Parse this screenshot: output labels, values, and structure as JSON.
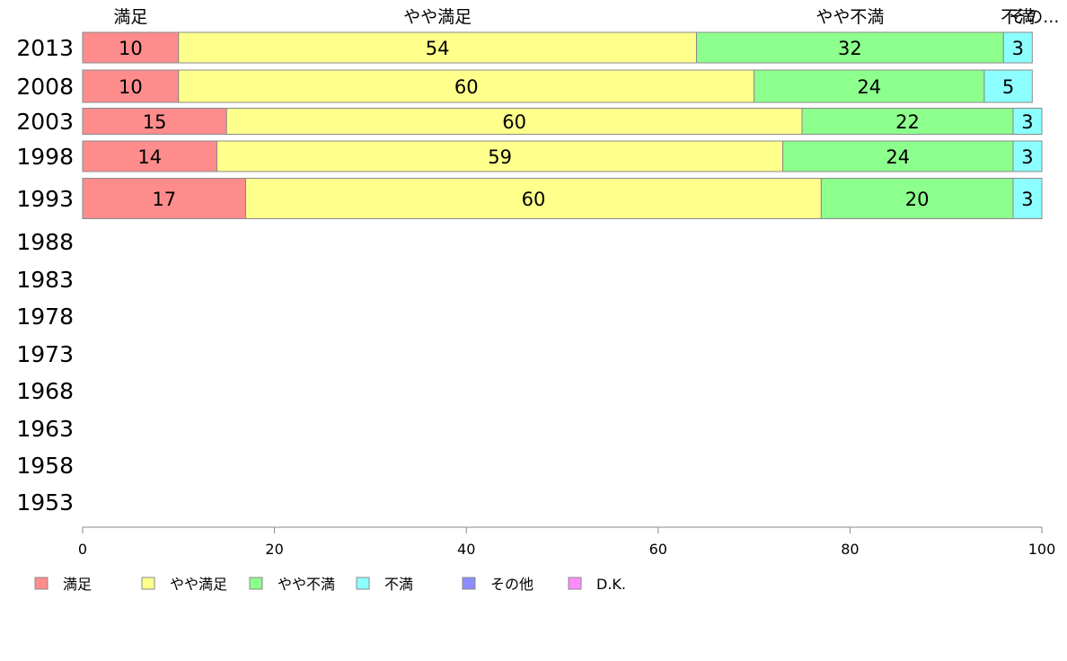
{
  "chart_data": {
    "type": "bar",
    "orientation": "horizontal",
    "stacked": true,
    "categories": [
      "2013",
      "2008",
      "2003",
      "1998",
      "1993",
      "1988",
      "1983",
      "1978",
      "1973",
      "1968",
      "1963",
      "1958",
      "1953"
    ],
    "series": [
      {
        "name": "満足",
        "color": "#ff8c8c",
        "values": [
          10,
          10,
          15,
          14,
          17,
          null,
          null,
          null,
          null,
          null,
          null,
          null,
          null
        ]
      },
      {
        "name": "やや満足",
        "color": "#ffff8c",
        "values": [
          54,
          60,
          60,
          59,
          60,
          null,
          null,
          null,
          null,
          null,
          null,
          null,
          null
        ]
      },
      {
        "name": "やや不満",
        "color": "#8cff8c",
        "values": [
          32,
          24,
          22,
          24,
          20,
          null,
          null,
          null,
          null,
          null,
          null,
          null,
          null
        ]
      },
      {
        "name": "不満",
        "color": "#8cffff",
        "values": [
          3,
          5,
          3,
          3,
          3,
          null,
          null,
          null,
          null,
          null,
          null,
          null,
          null
        ]
      },
      {
        "name": "その他",
        "color": "#8c8cff",
        "values": [
          0,
          0,
          0,
          0,
          0,
          null,
          null,
          null,
          null,
          null,
          null,
          null,
          null
        ]
      },
      {
        "name": "D.K.",
        "color": "#ff8cff",
        "values": [
          0,
          0,
          0,
          0,
          0,
          null,
          null,
          null,
          null,
          null,
          null,
          null,
          null
        ]
      }
    ],
    "top_labels": [
      "満足",
      "やや満足",
      "やや不満",
      "不満",
      "その..."
    ],
    "xlim": [
      0,
      100
    ],
    "xticks": [
      "0",
      "20",
      "40",
      "60",
      "80",
      "100"
    ],
    "legend_position": "bottom-left",
    "grid": false
  }
}
